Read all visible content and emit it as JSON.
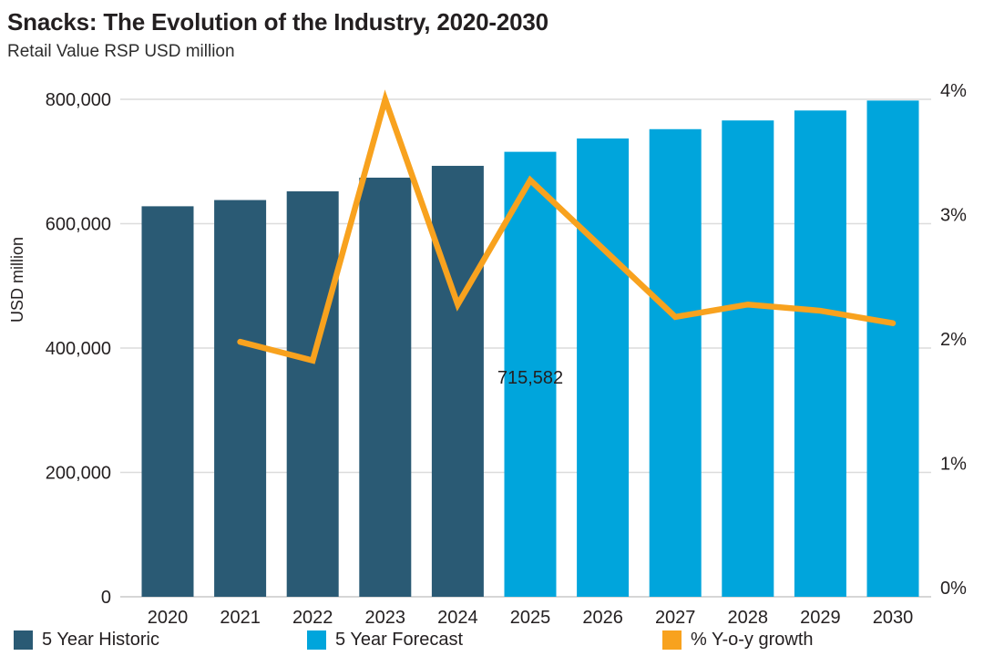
{
  "chart_data": {
    "type": "bar",
    "subtype": "combo-bar-line",
    "title": "Snacks: The Evolution of the Industry, 2020-2030",
    "subtitle": "Retail Value RSP USD million",
    "categories": [
      "2020",
      "2021",
      "2022",
      "2023",
      "2024",
      "2025",
      "2026",
      "2027",
      "2028",
      "2029",
      "2030"
    ],
    "series": [
      {
        "name": "5 Year Historic",
        "type": "bar",
        "yaxis": "left",
        "color": "#2A5A74",
        "values": [
          628000,
          638000,
          652000,
          674000,
          693000,
          null,
          null,
          null,
          null,
          null,
          null
        ]
      },
      {
        "name": "5 Year Forecast",
        "type": "bar",
        "yaxis": "left",
        "color": "#00A5DC",
        "values": [
          null,
          null,
          null,
          null,
          null,
          715582,
          737000,
          752000,
          766000,
          782000,
          798000
        ]
      },
      {
        "name": "% Y-o-y growth",
        "type": "line",
        "yaxis": "right",
        "color": "#F8A21E",
        "values": [
          null,
          2.05,
          1.9,
          4.0,
          2.35,
          3.35,
          2.8,
          2.25,
          2.35,
          2.3,
          2.2
        ]
      }
    ],
    "left_axis": {
      "label": "USD million",
      "min": 0,
      "max": 800000,
      "tick_values": [
        0,
        200000,
        400000,
        600000,
        800000
      ],
      "tick_labels": [
        "0",
        "200,000",
        "400,000",
        "600,000",
        "800,000"
      ]
    },
    "right_axis": {
      "min": 0,
      "max": 4,
      "tick_values": [
        0,
        1,
        2,
        3,
        4
      ],
      "tick_labels": [
        "0%",
        "1%",
        "2%",
        "3%",
        "4%"
      ]
    },
    "annotation": {
      "category": "2025",
      "text": "715,582"
    },
    "grid": "horizontal",
    "gridline_color": "#dcdcdc",
    "baseline_color": "#c9c9c9",
    "legend_position": "bottom"
  }
}
